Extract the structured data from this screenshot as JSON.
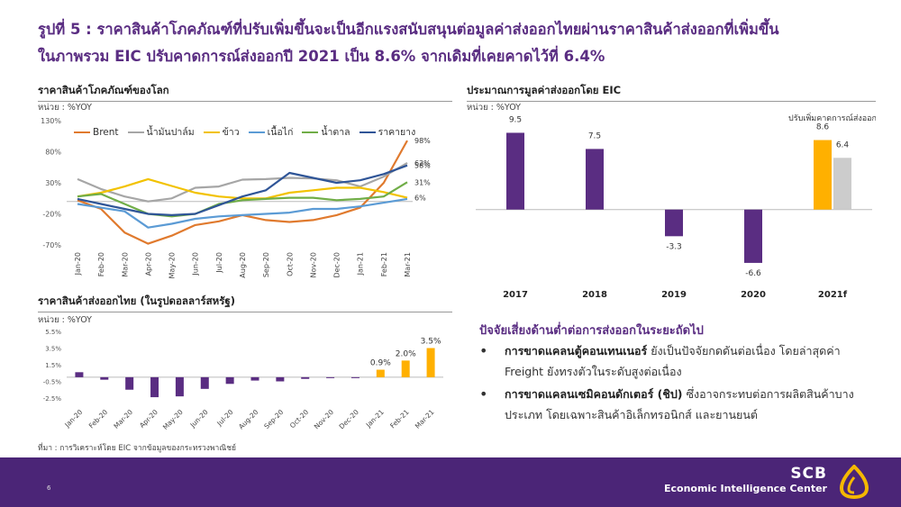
{
  "header": {
    "title_line1": "รูปที่ 5 : ราคาสินค้าโภคภัณฑ์ที่ปรับเพิ่มขึ้นจะเป็นอีกแรงสนับสนุนต่อมูลค่าส่งออกไทยผ่านราคาสินค้าส่งออกที่เพิ่มขึ้น",
    "title_line2": "ในภาพรวม EIC ปรับคาดการณ์ส่งออกปี 2021 เป็น 8.6% จากเดิมที่เคยคาดไว้ที่ 6.4%"
  },
  "sources": "ที่มา : การวิเคราะห์โดย EIC จากข้อมูลของกระทรวงพาณิชย์",
  "risks": {
    "title": "ปัจจัยเสี่ยงด้านต่ำต่อการส่งออกในระยะถัดไป",
    "items": [
      {
        "bold": "การขาดแคลนตู้คอนเทนเนอร์",
        "text": " ยังเป็นปัจจัยกดดันต่อเนื่อง โดยล่าสุดค่า Freight ยังทรงตัวในระดับสูงต่อเนื่อง"
      },
      {
        "bold": "การขาดแคลนเซมิคอนดักเตอร์ (ชิป)",
        "text": " ซึ่งอาจกระทบต่อการผลิตสินค้าบางประเภท โดยเฉพาะสินค้าอิเล็กทรอนิกส์ และยานยนต์"
      }
    ]
  },
  "footer": {
    "page": "6",
    "brand": "SCB",
    "sub": "Economic Intelligence Center",
    "bg": "#4b2577"
  },
  "chart_data": [
    {
      "type": "line",
      "title": "ราคาสินค้าโภคภัณฑ์ของโลก",
      "unit": "หน่วย : %YOY",
      "x": [
        "Jan-20",
        "Feb-20",
        "Mar-20",
        "Apr-20",
        "May-20",
        "Jun-20",
        "Jul-20",
        "Aug-20",
        "Sep-20",
        "Oct-20",
        "Nov-20",
        "Dec-20",
        "Jan-21",
        "Feb-21",
        "Mar-21"
      ],
      "ylim": [
        -70,
        130
      ],
      "yticks": [
        130,
        80,
        30,
        -20,
        -70
      ],
      "ytick_labels": [
        "130%",
        "80%",
        "30%",
        "-20%",
        "-70%"
      ],
      "series": [
        {
          "name": "Brent",
          "color": "#e07a2e",
          "values": [
            2,
            -12,
            -50,
            -68,
            -55,
            -38,
            -32,
            -22,
            -30,
            -33,
            -30,
            -22,
            -10,
            30,
            98
          ],
          "end_label": "98%"
        },
        {
          "name": "น้ำมันปาล์ม",
          "color": "#a6a6a6",
          "values": [
            36,
            20,
            8,
            0,
            5,
            22,
            24,
            35,
            36,
            38,
            37,
            34,
            24,
            40,
            62
          ],
          "end_label": "62%"
        },
        {
          "name": "ข้าว",
          "color": "#f2c200",
          "values": [
            8,
            14,
            24,
            36,
            25,
            14,
            8,
            5,
            5,
            14,
            18,
            22,
            22,
            15,
            6
          ],
          "end_label": "6%"
        },
        {
          "name": "เนื้อไก่",
          "color": "#5b9bd5",
          "values": [
            -4,
            -10,
            -16,
            -42,
            -36,
            -28,
            -24,
            -22,
            -20,
            -18,
            -12,
            -12,
            -8,
            -2,
            4
          ]
        },
        {
          "name": "น้ำตาล",
          "color": "#70ad47",
          "values": [
            8,
            12,
            -4,
            -20,
            -24,
            -20,
            -4,
            2,
            4,
            6,
            6,
            2,
            4,
            8,
            31
          ],
          "end_label": "31%"
        },
        {
          "name": "ราคายาง",
          "color": "#2f5597",
          "values": [
            4,
            -4,
            -12,
            -20,
            -22,
            -20,
            -6,
            8,
            18,
            46,
            38,
            30,
            34,
            44,
            58
          ],
          "end_label": "58%"
        }
      ]
    },
    {
      "type": "bar",
      "title": "ราคาสินค้าส่งออกไทย (ในรูปดอลลาร์สหรัฐ)",
      "unit": "หน่วย : %YOY",
      "categories": [
        "Jan-20",
        "Feb-20",
        "Mar-20",
        "Apr-20",
        "May-20",
        "Jun-20",
        "Jul-20",
        "Aug-20",
        "Sep-20",
        "Oct-20",
        "Nov-20",
        "Dec-20",
        "Jan-21",
        "Feb-21",
        "Mar-21"
      ],
      "values": [
        0.6,
        -0.3,
        -1.5,
        -2.4,
        -2.3,
        -1.4,
        -0.8,
        -0.4,
        -0.5,
        -0.2,
        -0.1,
        -0.1,
        0.9,
        2.0,
        3.5
      ],
      "data_labels": [
        "",
        "",
        "",
        "",
        "",
        "",
        "",
        "",
        "",
        "",
        "",
        "",
        "0.9%",
        "2.0%",
        "3.5%"
      ],
      "ylim": [
        -2.5,
        5.5
      ],
      "yticks": [
        5.5,
        3.5,
        1.5,
        -0.5,
        -2.5
      ],
      "ytick_labels": [
        "5.5%",
        "3.5%",
        "1.5%",
        "-0.5%",
        "-2.5%"
      ],
      "colors": {
        "negative": "#5a2d82",
        "positive": "#ffb000"
      }
    },
    {
      "type": "bar",
      "title": "ประมาณการมูลค่าส่งออกโดย EIC",
      "unit": "หน่วย : %YOY",
      "categories": [
        "2017",
        "2018",
        "2019",
        "2020",
        "2021f"
      ],
      "values": [
        9.5,
        7.5,
        -3.3,
        -6.6,
        8.6
      ],
      "data_labels": [
        "9.5",
        "7.5",
        "-3.3",
        "-6.6",
        "8.6"
      ],
      "extra": {
        "category": "2021f",
        "value": 6.4,
        "label": "6.4",
        "color": "#cccccc"
      },
      "annotation": "ปรับเพิ่มคาดการณ์ส่งออก",
      "ylim": [
        -7.5,
        11
      ],
      "colors": {
        "main": "#5a2d82",
        "forecast": "#ffb000"
      }
    }
  ]
}
